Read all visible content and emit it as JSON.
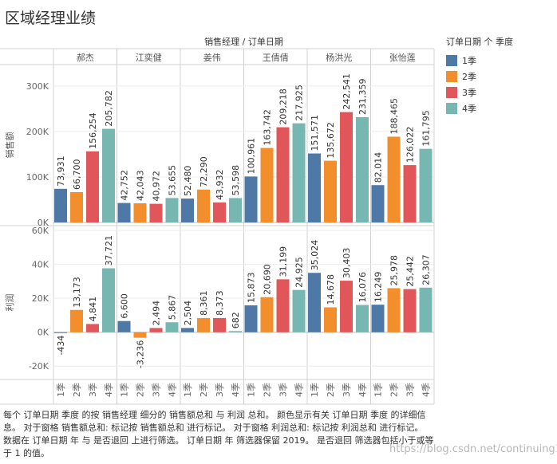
{
  "title": "区域经理业绩",
  "legend": {
    "title": "订单日期 个 季度",
    "items": [
      {
        "label": "1季",
        "color": "#4E79A7"
      },
      {
        "label": "2季",
        "color": "#F28E2B"
      },
      {
        "label": "3季",
        "color": "#E15759"
      },
      {
        "label": "4季",
        "color": "#76B7B2"
      }
    ]
  },
  "caption": "每个 订单日期 季度 的按 销售经理 细分的 销售额总和 与 利润 总和。 颜色显示有关 订单日期 季度 的详细信息。 对于窗格 销售额总和: 标记按 销售额总和 进行标记。 对于窗格 利润总和: 标记按 利润总和 进行标记。 数据在 订单日期 年 与 是否退回 上进行筛选。 订单日期 年 筛选器保留 2019。 是否退回 筛选器包括小于或等于 1 的值。",
  "watermark": "https://blog.csdn.net/continuing1234",
  "chart_data": {
    "type": "bar",
    "title": "销售经理 / 订单日期",
    "categories": [
      "郝杰",
      "江奕健",
      "姜伟",
      "王倩倩",
      "杨洪光",
      "张怡莲"
    ],
    "quarters": [
      "1季",
      "2季",
      "3季",
      "4季"
    ],
    "colors": [
      "#4E79A7",
      "#F28E2B",
      "#E15759",
      "#76B7B2"
    ],
    "panels": [
      {
        "ylabel": "销售额",
        "ylim": [
          0,
          340000
        ],
        "ticks": [
          0,
          100000,
          200000,
          300000
        ],
        "tick_labels": [
          "0K",
          "100K",
          "200K",
          "300K"
        ],
        "values": [
          [
            73931,
            66700,
            156254,
            205782
          ],
          [
            42752,
            42043,
            40972,
            53655
          ],
          [
            52480,
            72290,
            43932,
            53598
          ],
          [
            100961,
            163742,
            209218,
            217925
          ],
          [
            151571,
            135672,
            242541,
            231359
          ],
          [
            82014,
            188465,
            126022,
            161795
          ]
        ],
        "labels": [
          [
            "73,931",
            "66,700",
            "156,254",
            "205,782"
          ],
          [
            "42,752",
            "42,043",
            "40,972",
            "53,655"
          ],
          [
            "52,480",
            "72,290",
            "43,932",
            "53,598"
          ],
          [
            "100,961",
            "163,742",
            "209,218",
            "217,925"
          ],
          [
            "151,571",
            "135,672",
            "242,541",
            "231,359"
          ],
          [
            "82,014",
            "188,465",
            "126,022",
            "161,795"
          ]
        ]
      },
      {
        "ylabel": "利润",
        "ylim": [
          -26000,
          61000
        ],
        "ticks": [
          -20000,
          0,
          20000,
          40000,
          60000
        ],
        "tick_labels": [
          "-20K",
          "0K",
          "20K",
          "40K",
          "60K"
        ],
        "values": [
          [
            -434,
            13173,
            4841,
            37721
          ],
          [
            6600,
            -3236,
            2494,
            5867
          ],
          [
            2504,
            8361,
            8373,
            682
          ],
          [
            15873,
            20690,
            31199,
            24925
          ],
          [
            35024,
            14678,
            30403,
            16076
          ],
          [
            16249,
            25978,
            25442,
            26307
          ]
        ],
        "labels": [
          [
            "-434",
            "13,173",
            "4,841",
            "37,721"
          ],
          [
            "6,600",
            "-3,236",
            "2,494",
            "5,867"
          ],
          [
            "2,504",
            "8,361",
            "8,373",
            "682"
          ],
          [
            "15,873",
            "20,690",
            "31,199",
            "24,925"
          ],
          [
            "35,024",
            "14,678",
            "30,403",
            "16,076"
          ],
          [
            "16,249",
            "25,978",
            "25,442",
            "26,307"
          ]
        ]
      }
    ]
  }
}
